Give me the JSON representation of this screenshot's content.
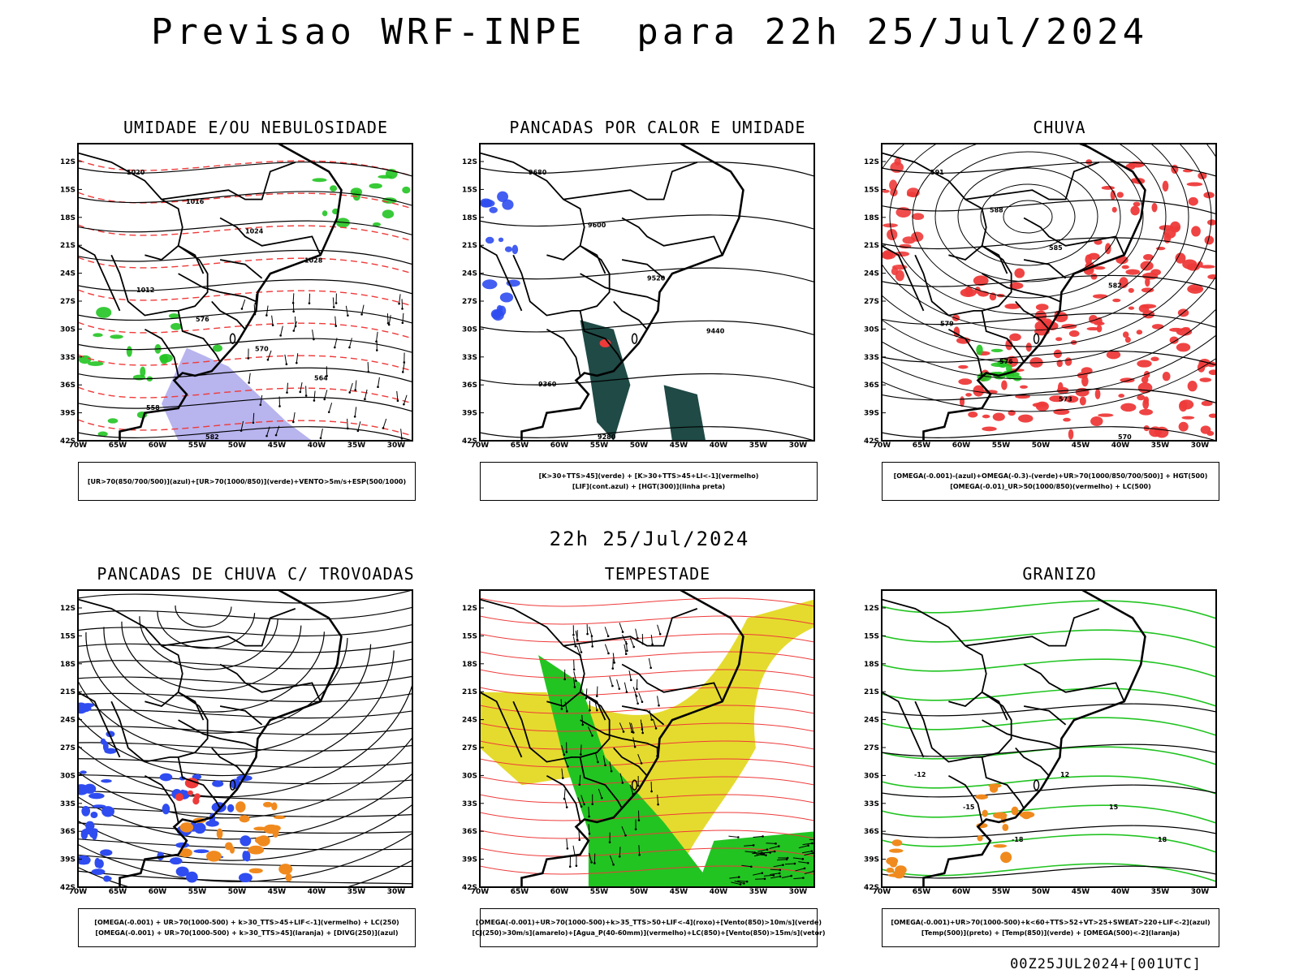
{
  "header": {
    "title": "Previsao WRF-INPE  para 22h 25/Jul/2024"
  },
  "middle_date": "22h 25/Jul/2024",
  "footer": "00Z25JUL2024+[001UTC]",
  "axes": {
    "lat_labels": [
      "12S",
      "15S",
      "18S",
      "21S",
      "24S",
      "27S",
      "30S",
      "33S",
      "36S",
      "39S",
      "42S"
    ],
    "lon_labels": [
      "70W",
      "65W",
      "60W",
      "55W",
      "50W",
      "45W",
      "40W",
      "35W",
      "30W"
    ]
  },
  "colors": {
    "red": "#ee3a3a",
    "green": "#22c422",
    "dark_green": "#1f4a46",
    "blue": "#2f4cf0",
    "lavender": "#b8b4ee",
    "yellow": "#e5db2e",
    "orange": "#f08a1e",
    "black": "#000000"
  },
  "panels": [
    {
      "id": "umidade",
      "title": "UMIDADE E/OU NEBULOSIDADE",
      "legend": [
        "[UR>70(850/700/500)](azul)+[UR>70(1000/850)](verde)+VENTO>5m/s+ESP(500/1000)"
      ],
      "contour_labels": [
        "1020",
        "1016",
        "1024",
        "1028",
        "1012",
        "576",
        "570",
        "564",
        "558",
        "582"
      ]
    },
    {
      "id": "pancadas",
      "title": "PANCADAS POR CALOR E UMIDADE",
      "legend": [
        "[K>30+TTS>45](verde) + [K>30+TTS>45+LI<-1](vermelho)",
        "[LIF](cont.azul) + [HGT(300)](linha preta)"
      ],
      "contour_labels": [
        "9680",
        "9600",
        "9520",
        "9440",
        "9360",
        "9280"
      ]
    },
    {
      "id": "chuva",
      "title": "CHUVA",
      "legend": [
        "[OMEGA(-0.001)-(azul)+OMEGA(-0.3)-(verde)+UR>70(1000/850/700/500)] + HGT(500)",
        "[OMEGA(-0.01)_UR>50(1000/850)(vermelho) + LC(500)"
      ],
      "contour_labels": [
        "591",
        "588",
        "585",
        "582",
        "579",
        "576",
        "573",
        "570"
      ]
    },
    {
      "id": "trovoadas",
      "title": "PANCADAS DE CHUVA C/ TROVOADAS",
      "legend": [
        "[OMEGA(-0.001) + UR>70(1000-500) + k>30_TTS>45+LIF<-1](vermelho) + LC(250)",
        "[OMEGA(-0.001) + UR>70(1000-500) + k>30_TTS>45](laranja) + [DIVG(250)](azul)"
      ],
      "contour_labels": []
    },
    {
      "id": "tempestade",
      "title": "TEMPESTADE",
      "legend": [
        "[OMEGA(-0.001)+UR>70(1000-500)+k>35_TTS>50+LIF<-4](roxo)+[Vento(850)>10m/s](verde)",
        "[CJ(250)>30m/s](amarelo)+[Agua_P(40-60mm)](vermelho)+LC(850)+[Vento(850)>15m/s](vetor)"
      ],
      "contour_labels": []
    },
    {
      "id": "granizo",
      "title": "GRANIZO",
      "legend": [
        "[OMEGA(-0.001)+UR>70(1000-500)+k<60+TTS>52+VT>25+SWEAT>220+LIF<-2](azul)",
        "[Temp(500)](preto) + [Temp(850)](verde) + [OMEGA(500)<-2](laranja)"
      ],
      "contour_labels": [
        "-12",
        "-15",
        "-18",
        "12",
        "15",
        "18"
      ]
    }
  ]
}
